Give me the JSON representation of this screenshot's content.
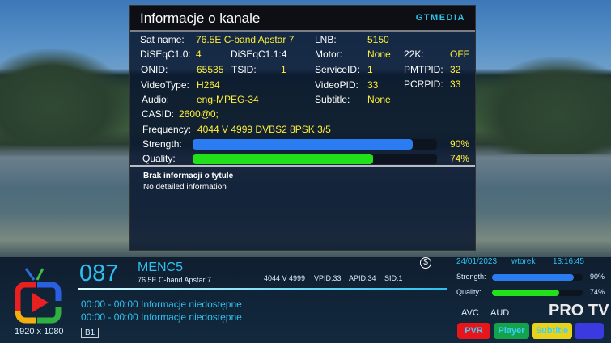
{
  "dialog": {
    "title": "Informacje o kanale",
    "brand": "GTMEDIA",
    "fields": {
      "sat_name_label": "Sat name:",
      "sat_name": "76.5E C-band Apstar 7",
      "lnb_label": "LNB:",
      "lnb": "5150",
      "diseqc10_label": "DiSEqC1.0:",
      "diseqc10": "4",
      "diseqc11": "DiSEqC1.1:4",
      "motor_label": "Motor:",
      "motor": "None",
      "k22_label": "22K:",
      "k22": "OFF",
      "onid_label": "ONID:",
      "onid": "65535",
      "tsid_label": "TSID:",
      "tsid": "1",
      "serviceid_label": "ServiceID:",
      "serviceid": "1",
      "pmtpid_label": "PMTPID:",
      "pmtpid": "32",
      "videotype_label": "VideoType:",
      "videotype": "H264",
      "videopid_label": "VideoPID:",
      "videopid": "33",
      "pcrpid_label": "PCRPID:",
      "pcrpid": "33",
      "audio_label": "Audio:",
      "audio": "eng-MPEG-34",
      "subtitle_label": "Subtitle:",
      "subtitle": "None",
      "casid_label": "CASID:",
      "casid": "2600@0;",
      "frequency_label": "Frequency:",
      "frequency": "4044 V 4999  DVBS2 8PSK 3/5"
    },
    "strength_label": "Strength:",
    "strength_value": "90%",
    "strength_pct": 90,
    "quality_label": "Quality:",
    "quality_value": "74%",
    "quality_pct": 74,
    "epg_title": "Brak informacji o tytule",
    "epg_detail": "No detailed information"
  },
  "infobar": {
    "channel_number": "087",
    "channel_name": "MENC5",
    "satellite": "76.5E C-band Apstar 7",
    "freq": "4044 V 4999",
    "vpid": "VPID:33",
    "apid": "APID:34",
    "sid": "SID:1",
    "epg": [
      "00:00 - 00:00 Informacje niedostępne",
      "00:00 - 00:00 Informacje niedostępne"
    ],
    "resolution": "1920 x 1080",
    "b1": "B1",
    "date": "24/01/2023",
    "day": "wtorek",
    "time": "13:16:45",
    "strength_label": "Strength:",
    "strength_value": "90%",
    "strength_pct": 90,
    "quality_label": "Quality:",
    "quality_value": "74%",
    "quality_pct": 74,
    "avc": "AVC",
    "aud": "AUD",
    "buttons": {
      "pvr": "PVR",
      "player": "Player",
      "subtitle": "Subtitle"
    }
  },
  "watermark": "PRO TV",
  "colors": {
    "strength": "#2a7cf0",
    "quality": "#22e01a",
    "value": "#ffef3a",
    "accent": "#2fc0f0",
    "pvr": "#e8161a",
    "player": "#14a24a",
    "subtitle": "#e8d21a",
    "blue": "#3a3ae0"
  }
}
